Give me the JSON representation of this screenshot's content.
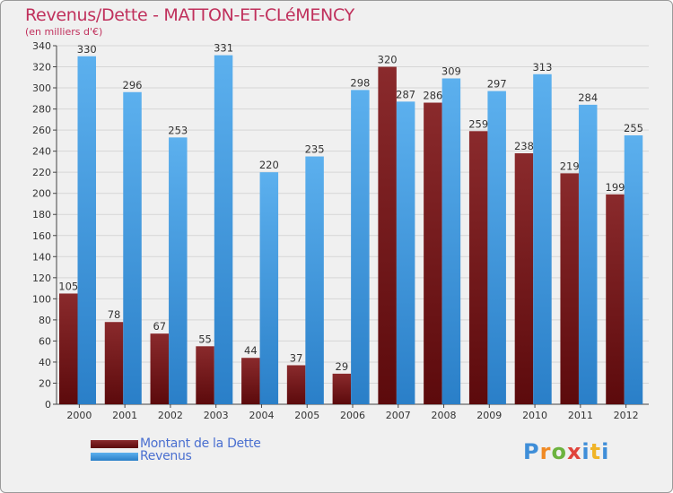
{
  "title": "Revenus/Dette - MATTON-ET-CLéMENCY",
  "subtitle": "(en milliers d'€)",
  "colors": {
    "debt": "#7a1618",
    "revenue": "#3f9de4",
    "title": "#c0305c",
    "legend_text": "#4a6fd0"
  },
  "logo": {
    "text": "Proxiti",
    "letter_colors": [
      "#3f8ed8",
      "#f08a24",
      "#6cb33f",
      "#e0443c",
      "#3f8ed8",
      "#f0b428",
      "#3f8ed8"
    ]
  },
  "chart_data": {
    "type": "bar",
    "categories": [
      "2000",
      "2001",
      "2002",
      "2003",
      "2004",
      "2005",
      "2006",
      "2007",
      "2008",
      "2009",
      "2010",
      "2011",
      "2012"
    ],
    "series": [
      {
        "name": "Montant de la Dette",
        "values": [
          105,
          78,
          67,
          55,
          44,
          37,
          29,
          320,
          286,
          259,
          238,
          219,
          199
        ]
      },
      {
        "name": "Revenus",
        "values": [
          330,
          296,
          253,
          331,
          220,
          235,
          298,
          287,
          309,
          297,
          313,
          284,
          255
        ]
      }
    ],
    "ylim": [
      0,
      340
    ],
    "yticks": [
      0,
      20,
      40,
      60,
      80,
      100,
      120,
      140,
      160,
      180,
      200,
      220,
      240,
      260,
      280,
      300,
      320,
      340
    ],
    "grid": true,
    "legend_position": "bottom-left"
  }
}
